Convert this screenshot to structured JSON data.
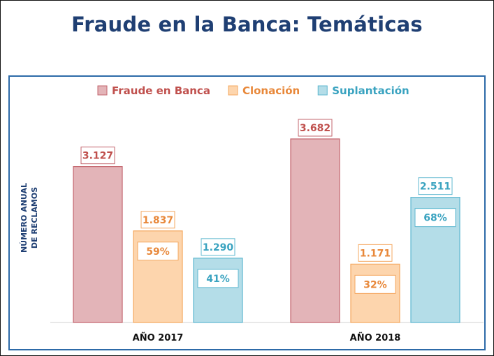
{
  "title": "Fraude en la Banca: Temáticas",
  "chart_data": {
    "type": "bar",
    "ylabel": [
      "NÚMERO ANUAL",
      "DE RECLAMOS"
    ],
    "categories": [
      "AÑO 2017",
      "AÑO 2018"
    ],
    "series": [
      {
        "name": "Fraude en Banca",
        "color": "#e3b4b8",
        "border": "#c3656d",
        "label_color": "#c0504d",
        "values": [
          3127,
          3682
        ],
        "value_labels": [
          "3.127",
          "3.682"
        ],
        "percent_labels": [
          null,
          null
        ]
      },
      {
        "name": "Clonación",
        "color": "#fdd5ad",
        "border": "#f4a860",
        "label_color": "#e8883a",
        "values": [
          1837,
          1171
        ],
        "value_labels": [
          "1.837",
          "1.171"
        ],
        "percent_labels": [
          "59%",
          "32%"
        ]
      },
      {
        "name": "Suplantación",
        "color": "#b4dde8",
        "border": "#5fb8d0",
        "label_color": "#3aa3c0",
        "values": [
          1290,
          2511
        ],
        "value_labels": [
          "1.290",
          "2.511"
        ],
        "percent_labels": [
          "41%",
          "68%"
        ]
      }
    ],
    "ylim": [
      0,
      4200
    ],
    "grid": false,
    "legend": "top"
  }
}
